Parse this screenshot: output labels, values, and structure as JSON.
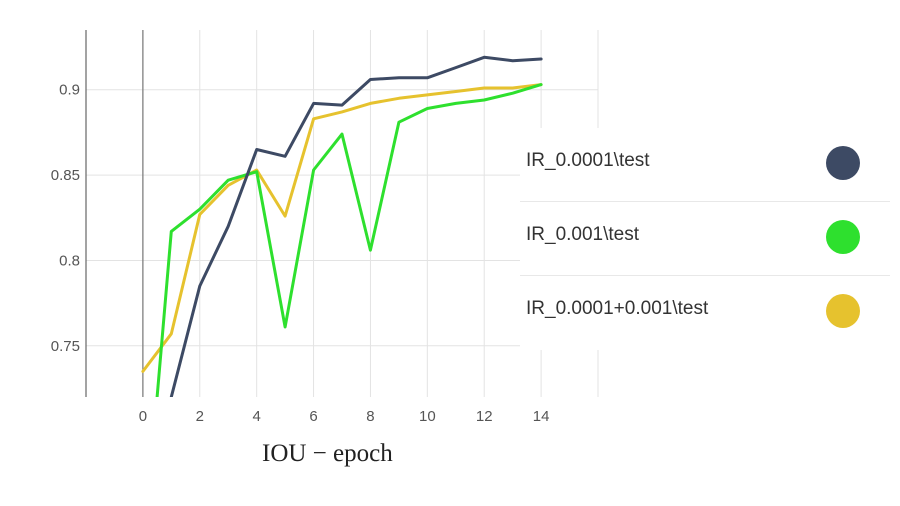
{
  "chart_data": {
    "type": "line",
    "title": "",
    "caption": "IOU − epoch",
    "xlabel": "",
    "ylabel": "",
    "xlim": [
      -2,
      16
    ],
    "ylim": [
      0.72,
      0.935
    ],
    "x_ticks": [
      0,
      2,
      4,
      6,
      8,
      10,
      12,
      14
    ],
    "x_tick_labels": [
      "0",
      "2",
      "4",
      "6",
      "8",
      "10",
      "12",
      "14"
    ],
    "y_ticks": [
      0.75,
      0.8,
      0.85,
      0.9
    ],
    "y_tick_labels": [
      "0.75",
      "0.8",
      "0.85",
      "0.9"
    ],
    "grid": true,
    "legend_position": "right",
    "series": [
      {
        "name": "IR_0.0001\\test",
        "color": "#3d4a64",
        "x": [
          0.3,
          1,
          2,
          3,
          4,
          5,
          6,
          7,
          8,
          9,
          10,
          11,
          12,
          13,
          14
        ],
        "y": [
          0.655,
          0.72,
          0.785,
          0.82,
          0.865,
          0.861,
          0.892,
          0.891,
          0.906,
          0.907,
          0.907,
          0.913,
          0.919,
          0.917,
          0.918
        ]
      },
      {
        "name": "IR_0.001\\test",
        "color": "#2ee02e",
        "x": [
          0.5,
          1,
          2,
          3,
          4,
          5,
          6,
          7,
          8,
          9,
          10,
          11,
          12,
          13,
          14
        ],
        "y": [
          0.72,
          0.817,
          0.83,
          0.847,
          0.852,
          0.761,
          0.853,
          0.874,
          0.806,
          0.881,
          0.889,
          0.892,
          0.894,
          0.898,
          0.903
        ]
      },
      {
        "name": "IR_0.0001+0.001\\test",
        "color": "#e6c22e",
        "x": [
          0,
          1,
          2,
          3,
          4,
          5,
          6,
          7,
          8,
          9,
          10,
          11,
          12,
          13,
          14
        ],
        "y": [
          0.735,
          0.757,
          0.827,
          0.844,
          0.853,
          0.826,
          0.883,
          0.887,
          0.892,
          0.895,
          0.897,
          0.899,
          0.901,
          0.901,
          0.903
        ]
      }
    ]
  }
}
